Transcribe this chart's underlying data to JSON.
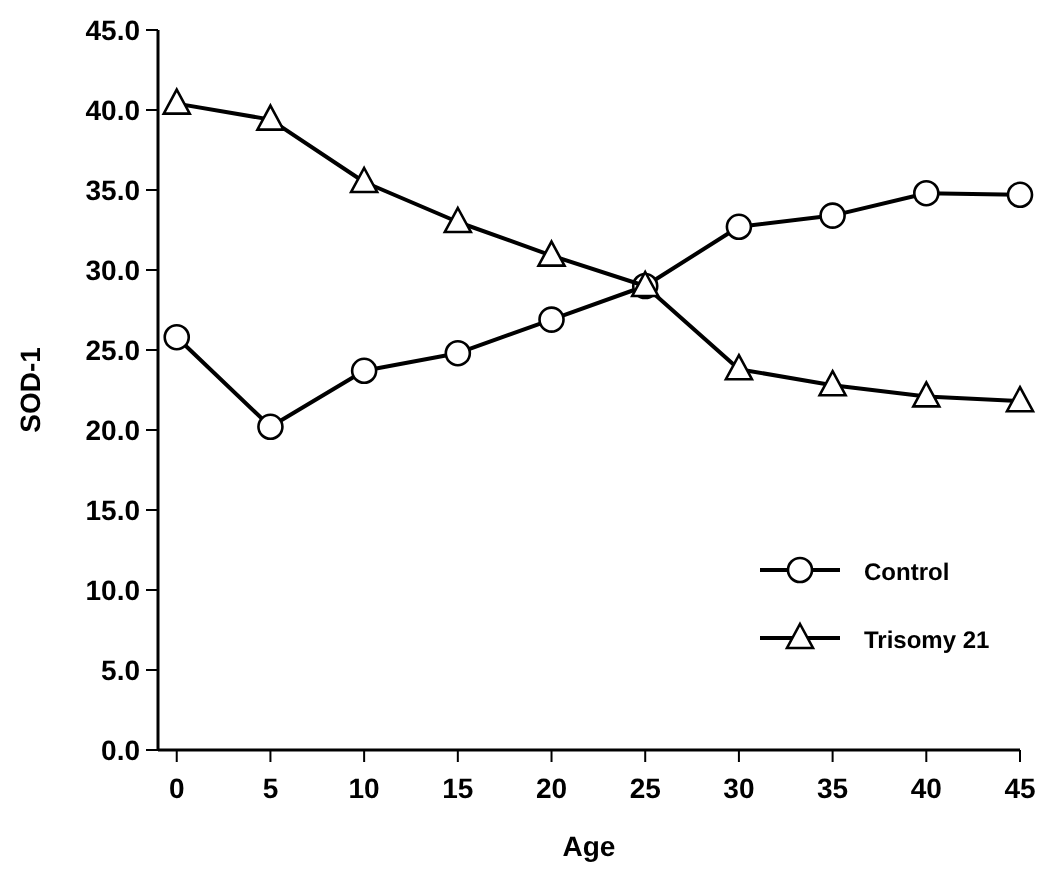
{
  "chart_data": {
    "type": "line",
    "xlabel": "Age",
    "ylabel": "SOD-1",
    "x": [
      0,
      5,
      10,
      15,
      20,
      25,
      30,
      35,
      40,
      45
    ],
    "series": [
      {
        "name": "Control",
        "color": "#000000",
        "marker": "circle",
        "values": [
          25.8,
          20.2,
          23.7,
          24.8,
          26.9,
          29.0,
          32.7,
          33.4,
          34.8,
          34.7
        ]
      },
      {
        "name": "Trisomy 21",
        "color": "#000000",
        "marker": "triangle",
        "values": [
          40.4,
          39.4,
          35.5,
          33.0,
          30.9,
          29.0,
          23.8,
          22.8,
          22.1,
          21.8
        ]
      }
    ],
    "xlim": [
      -1,
      45
    ],
    "xticks": [
      0,
      5,
      10,
      15,
      20,
      25,
      30,
      35,
      40,
      45
    ],
    "ylim": [
      0,
      45
    ],
    "yticks": [
      {
        "value": 0,
        "label": "0.0"
      },
      {
        "value": 5,
        "label": "5.0"
      },
      {
        "value": 10,
        "label": "10.0"
      },
      {
        "value": 15,
        "label": "15.0"
      },
      {
        "value": 20,
        "label": "20.0"
      },
      {
        "value": 25,
        "label": "25.0"
      },
      {
        "value": 30,
        "label": "30.0"
      },
      {
        "value": 35,
        "label": "35.0"
      },
      {
        "value": 40,
        "label": "40.0"
      },
      {
        "value": 45,
        "label": "45.0"
      }
    ],
    "legend": "bottom right",
    "line_style": "solid"
  }
}
